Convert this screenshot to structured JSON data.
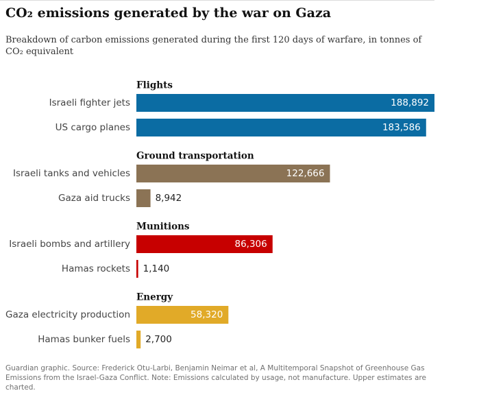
{
  "chart_data": {
    "type": "bar",
    "title": "CO₂ emissions generated by the war on Gaza",
    "subtitle": "Breakdown of carbon emissions generated during the first 120 days of warfare, in tonnes of CO₂ equivalent",
    "groups": [
      {
        "name": "Flights",
        "color": "#0b6ca3",
        "categories": [
          "Israeli fighter jets",
          "US cargo planes"
        ],
        "values": [
          188892,
          183586
        ],
        "value_labels": [
          "188,892",
          "183,586"
        ]
      },
      {
        "name": "Ground transportation",
        "color": "#8b7355",
        "categories": [
          "Israeli tanks and vehicles",
          "Gaza aid trucks"
        ],
        "values": [
          122666,
          8942
        ],
        "value_labels": [
          "122,666",
          "8,942"
        ]
      },
      {
        "name": "Munitions",
        "color": "#c70000",
        "categories": [
          "Israeli bombs and artillery",
          "Hamas rockets"
        ],
        "values": [
          86306,
          1140
        ],
        "value_labels": [
          "86,306",
          "1,140"
        ]
      },
      {
        "name": "Energy",
        "color": "#e1aa28",
        "categories": [
          "Gaza electricity production",
          "Hamas bunker fuels"
        ],
        "values": [
          58320,
          2700
        ],
        "value_labels": [
          "58,320",
          "2,700"
        ]
      }
    ],
    "source": "Guardian graphic. Source: Frederick Otu-Larbi, Benjamin Neimar et al, A Multitemporal Snapshot of Greenhouse Gas Emissions from the Israel-Gaza Conflict. Note: Emissions calculated by usage, not manufacture. Upper estimates are charted."
  }
}
